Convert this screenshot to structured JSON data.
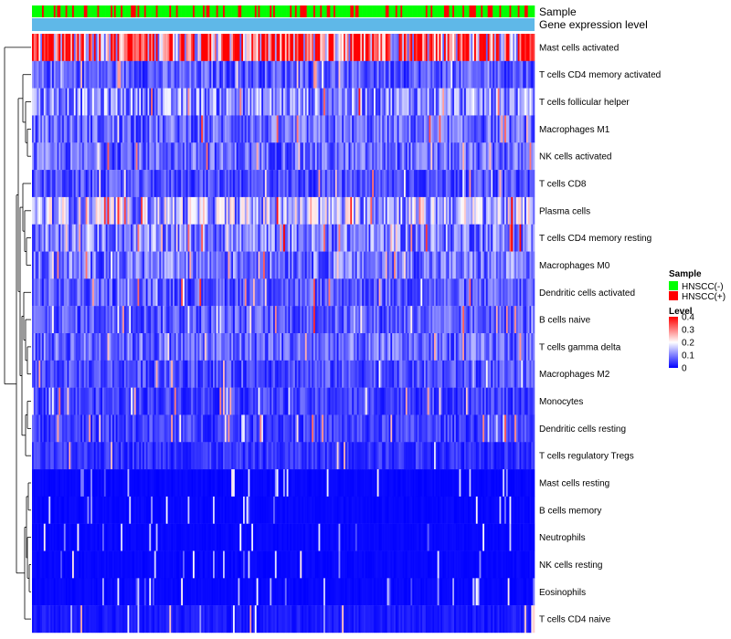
{
  "chart_data": {
    "type": "heatmap",
    "title": "",
    "annotation_rows": [
      {
        "label": "Sample",
        "values": "per-column HNSCC(-)/HNSCC(+) class"
      },
      {
        "label": "Gene expression level",
        "values": "uniform light-blue band"
      }
    ],
    "rows": [
      {
        "name": "Mast cells activated",
        "mean": 0.32
      },
      {
        "name": "T cells CD4 memory activated",
        "mean": 0.07
      },
      {
        "name": "T cells follicular helper",
        "mean": 0.11
      },
      {
        "name": "Macrophages M1",
        "mean": 0.08
      },
      {
        "name": "NK cells activated",
        "mean": 0.08
      },
      {
        "name": "T cells CD8",
        "mean": 0.06
      },
      {
        "name": "Plasma cells",
        "mean": 0.14
      },
      {
        "name": "T cells CD4 memory resting",
        "mean": 0.1
      },
      {
        "name": "Macrophages M0",
        "mean": 0.09
      },
      {
        "name": "Dendritic cells activated",
        "mean": 0.07
      },
      {
        "name": "B cells naive",
        "mean": 0.07
      },
      {
        "name": "T cells gamma delta",
        "mean": 0.08
      },
      {
        "name": "Macrophages M2",
        "mean": 0.06
      },
      {
        "name": "Monocytes",
        "mean": 0.05
      },
      {
        "name": "Dendritic cells resting",
        "mean": 0.05
      },
      {
        "name": "T cells regulatory  Tregs",
        "mean": 0.04
      },
      {
        "name": "Mast cells resting",
        "mean": 0.01
      },
      {
        "name": "B cells memory",
        "mean": 0.01
      },
      {
        "name": "Neutrophils",
        "mean": 0.01
      },
      {
        "name": "NK cells resting",
        "mean": 0.01
      },
      {
        "name": "Eosinophils",
        "mean": 0.01
      },
      {
        "name": "T cells CD4 naive",
        "mean": 0.02
      }
    ],
    "n_columns": 300,
    "sample_legend": {
      "title": "Sample",
      "items": [
        {
          "label": "HNSCC(-)",
          "color": "#00ff00"
        },
        {
          "label": "HNSCC(+)",
          "color": "#ff0000"
        }
      ]
    },
    "level_legend": {
      "title": "Level",
      "ticks": [
        "0",
        "0.1",
        "0.2",
        "0.3",
        "0.4"
      ],
      "range": [
        0,
        0.4
      ],
      "colors": [
        "#0000ff",
        "#ffffff",
        "#ff0000"
      ]
    },
    "annotation_color": "#5fb8e8"
  }
}
